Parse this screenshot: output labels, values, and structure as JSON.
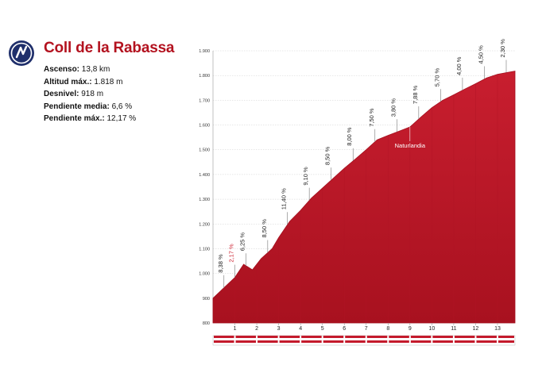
{
  "header": {
    "title": "Coll de la Rabassa",
    "stats": [
      {
        "label": "Ascenso:",
        "value": "13,8 km"
      },
      {
        "label": "Altitud máx.:",
        "value": "1.818 m"
      },
      {
        "label": "Desnivel:",
        "value": "918 m"
      },
      {
        "label": "Pendiente media:",
        "value": "6,6 %"
      },
      {
        "label": "Pendiente máx.:",
        "value": "12,17 %"
      }
    ]
  },
  "colors": {
    "profile_fill": "#c41a2c",
    "profile_dark": "#a5101f",
    "title": "#b3121f",
    "highlight_grade": "#cc1f2e"
  },
  "chart_data": {
    "type": "area",
    "title": "Coll de la Rabassa",
    "xlabel": "",
    "ylabel": "",
    "xlim": [
      0,
      13.8
    ],
    "ylim": [
      800,
      1900
    ],
    "yticks": [
      800,
      900,
      1000,
      1100,
      1200,
      1300,
      1400,
      1500,
      1600,
      1700,
      1800,
      1900
    ],
    "ytick_labels": [
      "800",
      "900",
      "1.000",
      "1.100",
      "1.200",
      "1.300",
      "1.400",
      "1.500",
      "1.600",
      "1.700",
      "1.800",
      "1.900"
    ],
    "xticks": [
      1,
      2,
      3,
      4,
      5,
      6,
      7,
      8,
      9,
      10,
      11,
      12,
      13
    ],
    "xtick_labels": [
      "1",
      "2",
      "3",
      "4",
      "5",
      "6",
      "7",
      "8",
      "9",
      "10",
      "11",
      "12",
      "13"
    ],
    "grid": true,
    "profile": [
      {
        "x": 0,
        "y": 900
      },
      {
        "x": 0.5,
        "y": 942
      },
      {
        "x": 1,
        "y": 984
      },
      {
        "x": 1.4,
        "y": 1037
      },
      {
        "x": 1.8,
        "y": 1015
      },
      {
        "x": 2.2,
        "y": 1060
      },
      {
        "x": 2.7,
        "y": 1100
      },
      {
        "x": 3,
        "y": 1145
      },
      {
        "x": 3.5,
        "y": 1210
      },
      {
        "x": 4,
        "y": 1255
      },
      {
        "x": 4.5,
        "y": 1305
      },
      {
        "x": 5,
        "y": 1345
      },
      {
        "x": 5.5,
        "y": 1385
      },
      {
        "x": 6,
        "y": 1425
      },
      {
        "x": 6.5,
        "y": 1462
      },
      {
        "x": 7,
        "y": 1500
      },
      {
        "x": 7.5,
        "y": 1540
      },
      {
        "x": 8,
        "y": 1558
      },
      {
        "x": 8.5,
        "y": 1575
      },
      {
        "x": 9,
        "y": 1592
      },
      {
        "x": 9.5,
        "y": 1632
      },
      {
        "x": 10,
        "y": 1670
      },
      {
        "x": 10.5,
        "y": 1700
      },
      {
        "x": 11,
        "y": 1722
      },
      {
        "x": 11.5,
        "y": 1745
      },
      {
        "x": 12,
        "y": 1767
      },
      {
        "x": 12.5,
        "y": 1790
      },
      {
        "x": 13,
        "y": 1805
      },
      {
        "x": 13.8,
        "y": 1818
      }
    ],
    "gradients": [
      {
        "x": 0.5,
        "y": 942,
        "label": "8,38 %",
        "highlight": false
      },
      {
        "x": 1.0,
        "y": 984,
        "label": "2,17 %",
        "highlight": true
      },
      {
        "x": 1.5,
        "y": 1030,
        "label": "6,25 %",
        "highlight": false
      },
      {
        "x": 2.5,
        "y": 1084,
        "label": "8,50 %",
        "highlight": false
      },
      {
        "x": 3.4,
        "y": 1197,
        "label": "11,40 %",
        "highlight": false
      },
      {
        "x": 4.4,
        "y": 1295,
        "label": "9,10 %",
        "highlight": false
      },
      {
        "x": 5.4,
        "y": 1377,
        "label": "8,50 %",
        "highlight": false
      },
      {
        "x": 6.4,
        "y": 1455,
        "label": "8,00 %",
        "highlight": false
      },
      {
        "x": 7.4,
        "y": 1532,
        "label": "7,50 %",
        "highlight": false
      },
      {
        "x": 8.4,
        "y": 1572,
        "label": "3,80 %",
        "highlight": false
      },
      {
        "x": 9.4,
        "y": 1624,
        "label": "7,88 %",
        "highlight": false
      },
      {
        "x": 10.4,
        "y": 1694,
        "label": "5,70 %",
        "highlight": false
      },
      {
        "x": 11.4,
        "y": 1740,
        "label": "4,00 %",
        "highlight": false
      },
      {
        "x": 12.4,
        "y": 1786,
        "label": "4,50 %",
        "highlight": false
      },
      {
        "x": 13.4,
        "y": 1812,
        "label": "2,30 %",
        "highlight": false
      }
    ],
    "annotations": [
      {
        "x": 9.0,
        "y": 1592,
        "label": "Naturlandia"
      }
    ]
  }
}
